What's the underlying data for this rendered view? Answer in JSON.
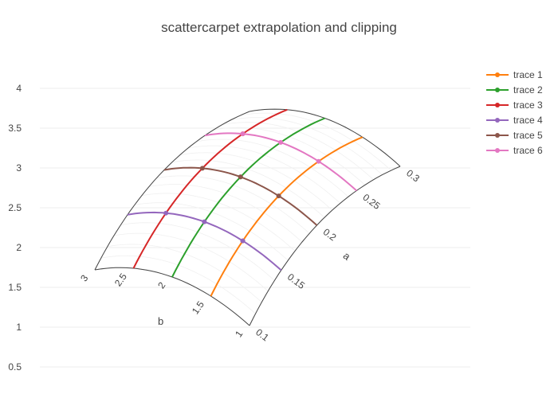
{
  "chart_data": {
    "type": "scatter",
    "title": "scattercarpet extrapolation and clipping",
    "ylim": [
      0.4,
      4.4
    ],
    "y_ticks": [
      0.5,
      1,
      1.5,
      2,
      2.5,
      3,
      3.5,
      4
    ],
    "grid": true,
    "legend_position": "right",
    "carpet": {
      "a_axis": {
        "title": "a",
        "ticks": [
          0.1,
          0.15,
          0.2,
          0.25,
          0.3
        ],
        "tick_labels": [
          "0.1",
          "0.15",
          "0.2",
          "0.25",
          "0.3"
        ]
      },
      "b_axis": {
        "title": "b",
        "ticks": [
          1,
          1.5,
          2,
          2.5,
          3
        ],
        "tick_labels": [
          "1",
          "1.5",
          "2",
          "2.5",
          "3"
        ]
      },
      "a_range": [
        0.1,
        0.3
      ],
      "b_range": [
        1,
        3
      ]
    },
    "series": [
      {
        "name": "trace 1",
        "color": "#ff7f0e",
        "a": [
          0.1,
          0.15,
          0.2,
          0.25,
          0.3
        ],
        "b": [
          1.5,
          1.5,
          1.5,
          1.5,
          1.5
        ],
        "marker_index": 1
      },
      {
        "name": "trace 2",
        "color": "#2ca02c",
        "a": [
          0.1,
          0.15,
          0.2,
          0.25,
          0.3
        ],
        "b": [
          2,
          2,
          2,
          2,
          2
        ],
        "marker_index": 2
      },
      {
        "name": "trace 3",
        "color": "#d62728",
        "a": [
          0.1,
          0.15,
          0.2,
          0.25,
          0.3
        ],
        "b": [
          2.5,
          2.5,
          2.5,
          2.5,
          2.5
        ],
        "marker_index": 3
      },
      {
        "name": "trace 4",
        "color": "#9467bd",
        "a": [
          0.15,
          0.15,
          0.15,
          0.15,
          0.15
        ],
        "b": [
          1,
          1.5,
          2,
          2.5,
          3
        ],
        "marker_index": [
          1,
          2,
          3
        ]
      },
      {
        "name": "trace 5",
        "color": "#8c564b",
        "a": [
          0.2,
          0.2,
          0.2,
          0.2,
          0.2
        ],
        "b": [
          1,
          1.5,
          2,
          2.5,
          3
        ],
        "marker_index": [
          1,
          2,
          3
        ]
      },
      {
        "name": "trace 6",
        "color": "#e377c2",
        "a": [
          0.25,
          0.25,
          0.25,
          0.25,
          0.25
        ],
        "b": [
          1,
          1.5,
          2,
          2.5,
          3
        ],
        "marker_index": [
          1,
          2,
          3
        ]
      }
    ]
  }
}
